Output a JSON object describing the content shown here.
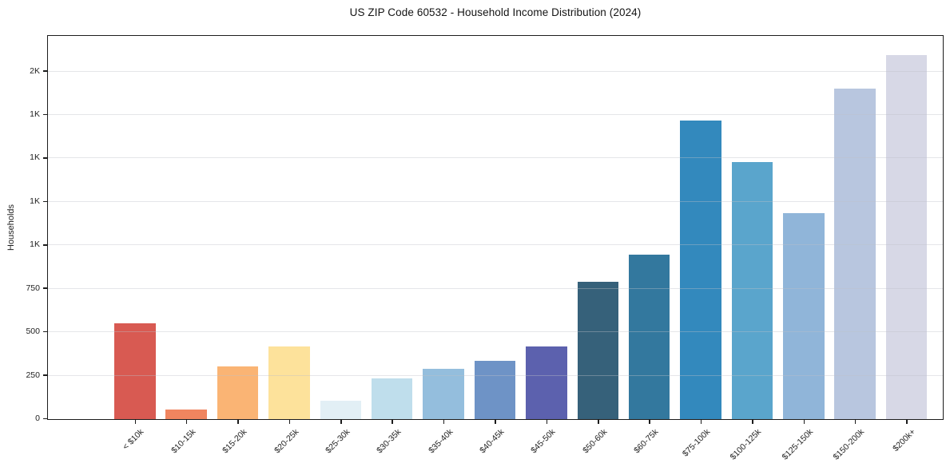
{
  "chart_data": {
    "type": "bar",
    "title": "US ZIP Code 60532 - Household Income Distribution (2024)",
    "xlabel": "",
    "ylabel": "Households",
    "categories": [
      "< $10k",
      "$10-15k",
      "$15-20k",
      "$20-25k",
      "$25-30k",
      "$30-35k",
      "$35-40k",
      "$40-45k",
      "$45-50k",
      "$50-60k",
      "$60-75k",
      "$75-100k",
      "$100-125k",
      "$125-150k",
      "$150-200k",
      "$200k+"
    ],
    "values": [
      550,
      55,
      305,
      420,
      105,
      235,
      290,
      335,
      418,
      790,
      945,
      1717,
      1480,
      1185,
      1900,
      2095
    ],
    "bar_colors": [
      "#d85a52",
      "#f0855f",
      "#fab474",
      "#fde29b",
      "#e2eff5",
      "#bfdeec",
      "#94bedd",
      "#6e93c6",
      "#5c61ae",
      "#36617a",
      "#33789e",
      "#3389bd",
      "#5aa5cc",
      "#90b5d9",
      "#b8c6df",
      "#d7d8e6"
    ],
    "ylim": [
      0,
      2200
    ],
    "yticks": [
      {
        "value": 0,
        "label": "0"
      },
      {
        "value": 250,
        "label": "250"
      },
      {
        "value": 500,
        "label": "500"
      },
      {
        "value": 750,
        "label": "750"
      },
      {
        "value": 1000,
        "label": "1K"
      },
      {
        "value": 1250,
        "label": "1K"
      },
      {
        "value": 1500,
        "label": "1K"
      },
      {
        "value": 1750,
        "label": "1K"
      },
      {
        "value": 2000,
        "label": "2K"
      }
    ],
    "grid": "horizontal",
    "legend": "none"
  },
  "colors": {
    "background": "#ffffff",
    "spine": "#1c1c1c",
    "grid": "rgba(190,192,200,0.40)",
    "text": "#1f1f1f"
  }
}
